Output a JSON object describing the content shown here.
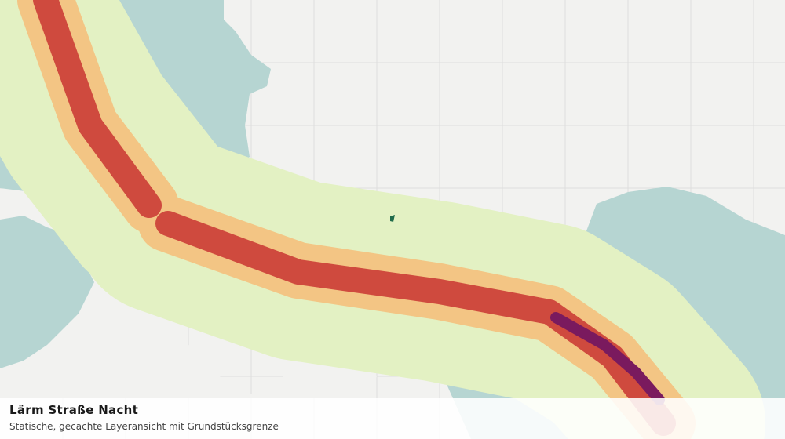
{
  "legend": {
    "title": "Lärm Straße Nacht",
    "subtitle": "Statische, gecachte Layeransicht mit Grundstücksgrenze"
  }
}
